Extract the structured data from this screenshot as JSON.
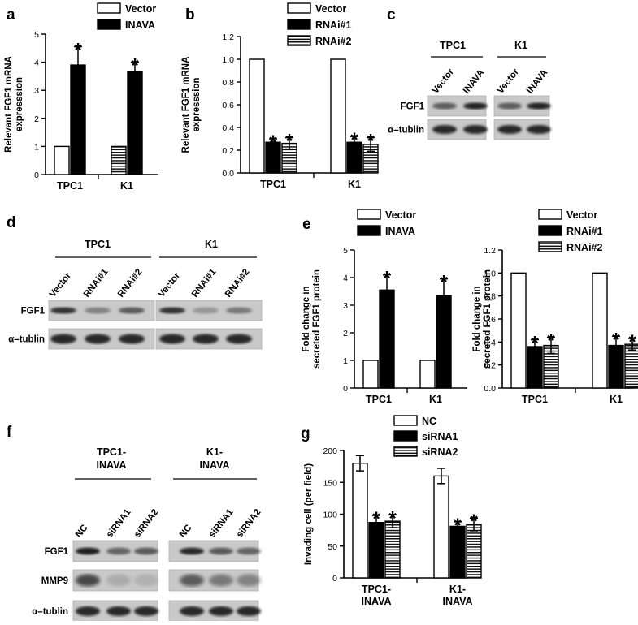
{
  "panel_letters": {
    "a": "a",
    "b": "b",
    "c": "c",
    "d": "d",
    "e": "e",
    "f": "f",
    "g": "g"
  },
  "chart_data": [
    {
      "id": "a",
      "type": "bar",
      "categories": [
        "TPC1",
        "K1"
      ],
      "ylabel": "Relevant FGF1 mRNA expression",
      "ylabel_lines": [
        "Relevant FGF1 mRNA",
        "expresssion"
      ],
      "ylim": [
        0,
        5
      ],
      "yticks": [
        "0",
        "1",
        "2",
        "3",
        "4",
        "5"
      ],
      "series": [
        {
          "name": "Vector",
          "values": [
            1.0,
            1.0
          ],
          "errors": [
            0,
            0
          ],
          "style": "white"
        },
        {
          "name": "INAVA",
          "values": [
            3.9,
            3.65
          ],
          "errors": [
            0.65,
            0.35
          ],
          "style": "black"
        }
      ],
      "bar_order": [
        [
          0,
          "white"
        ],
        [
          0,
          "black"
        ],
        [
          1,
          "stripe"
        ],
        [
          1,
          "black"
        ]
      ],
      "significance": "*"
    },
    {
      "id": "b",
      "type": "bar",
      "categories": [
        "TPC1",
        "K1"
      ],
      "ylabel": "Relevant FGF1 mRNA expresssion",
      "ylabel_lines": [
        "Relevant FGF1 mRNA",
        "expresssion"
      ],
      "ylim": [
        0,
        1.2
      ],
      "yticks": [
        "0.0",
        "0.2",
        "0.4",
        "0.6",
        "0.8",
        "1.0",
        "1.2"
      ],
      "series": [
        {
          "name": "Vector",
          "values": [
            1.0,
            1.0
          ],
          "errors": [
            0,
            0
          ],
          "style": "white"
        },
        {
          "name": "RNAi#1",
          "values": [
            0.27,
            0.27
          ],
          "errors": [
            0.03,
            0.05
          ],
          "style": "black"
        },
        {
          "name": "RNAi#2",
          "values": [
            0.26,
            0.25
          ],
          "errors": [
            0.05,
            0.06
          ],
          "style": "stripe"
        }
      ],
      "significance": "*"
    },
    {
      "id": "e1",
      "type": "bar",
      "categories": [
        "TPC1",
        "K1"
      ],
      "ylabel": "Fold change in secreted FGF1 protein",
      "ylabel_lines": [
        "Fold change in",
        "secreted FGF1 protein"
      ],
      "ylim": [
        0,
        5
      ],
      "yticks": [
        "0",
        "1",
        "2",
        "3",
        "4",
        "5"
      ],
      "series": [
        {
          "name": "Vector",
          "values": [
            1.0,
            1.0
          ],
          "errors": [
            0,
            0
          ],
          "style": "white"
        },
        {
          "name": "INAVA",
          "values": [
            3.55,
            3.35
          ],
          "errors": [
            0.55,
            0.6
          ],
          "style": "black"
        }
      ],
      "significance": "*"
    },
    {
      "id": "e2",
      "type": "bar",
      "categories": [
        "TPC1",
        "K1"
      ],
      "ylabel": "Fold change in secreted FGF1 protein",
      "ylabel_lines": [
        "Fold change in",
        "secreted FGF1 protein"
      ],
      "ylim": [
        0,
        1.2
      ],
      "yticks": [
        "0.0",
        "0.2",
        "0.4",
        "0.6",
        "0.8",
        "1.0",
        "1.2"
      ],
      "series": [
        {
          "name": "Vector",
          "values": [
            1.0,
            1.0
          ],
          "errors": [
            0,
            0
          ],
          "style": "white"
        },
        {
          "name": "RNAi#1",
          "values": [
            0.36,
            0.37
          ],
          "errors": [
            0.06,
            0.08
          ],
          "style": "black"
        },
        {
          "name": "RNAi#2",
          "values": [
            0.37,
            0.38
          ],
          "errors": [
            0.07,
            0.05
          ],
          "style": "stripe"
        }
      ],
      "significance": "*"
    },
    {
      "id": "g",
      "type": "bar",
      "categories": [
        "TPC1-\nINAVA",
        "K1-\nINAVA"
      ],
      "category_lines": [
        [
          "TPC1-",
          "INAVA"
        ],
        [
          "K1-",
          "INAVA"
        ]
      ],
      "ylabel": "Invading cell (per field)",
      "ylabel_lines": [
        "Invading cell (per field)"
      ],
      "ylim": [
        0,
        200
      ],
      "yticks": [
        "0",
        "50",
        "100",
        "150",
        "200"
      ],
      "series": [
        {
          "name": "NC",
          "values": [
            180,
            160
          ],
          "errors": [
            12,
            12
          ],
          "style": "white"
        },
        {
          "name": "siRNA1",
          "values": [
            87,
            81
          ],
          "errors": [
            11,
            7
          ],
          "style": "black"
        },
        {
          "name": "siRNA2",
          "values": [
            89,
            84
          ],
          "errors": [
            10,
            10
          ],
          "style": "stripe"
        }
      ],
      "significance": "*"
    }
  ],
  "blots": {
    "c": {
      "groups": [
        "TPC1",
        "K1"
      ],
      "lanes": [
        "Vector",
        "INAVA",
        "Vector",
        "INAVA"
      ],
      "rows": [
        "FGF1",
        "α–tublin"
      ]
    },
    "d": {
      "groups": [
        "TPC1",
        "K1"
      ],
      "lanes": [
        "Vector",
        "RNAi#1",
        "RNAi#2",
        "Vector",
        "RNAi#1",
        "RNAi#2"
      ],
      "rows": [
        "FGF1",
        "α–tublin"
      ]
    },
    "f": {
      "groups": [
        [
          "TPC1-",
          "INAVA"
        ],
        [
          "K1-",
          "INAVA"
        ]
      ],
      "lanes": [
        "NC",
        "siRNA1",
        "siRNA2",
        "NC",
        "siRNA1",
        "siRNA2"
      ],
      "rows": [
        "FGF1",
        "MMP9",
        "α–tublin"
      ]
    }
  }
}
